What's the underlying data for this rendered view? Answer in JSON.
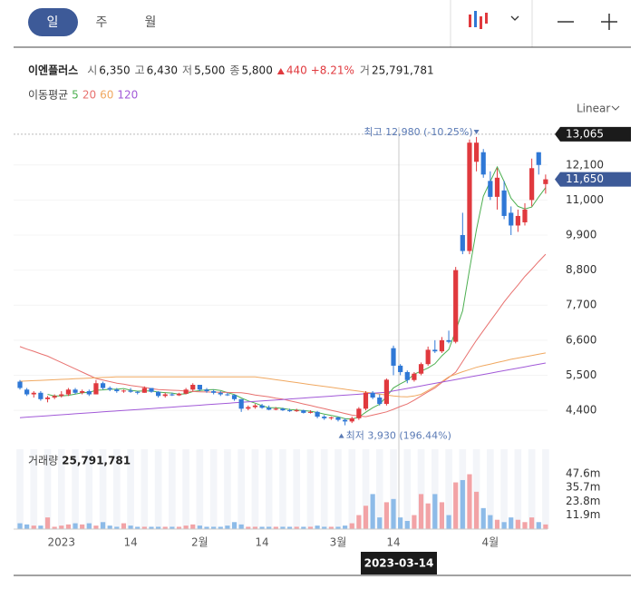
{
  "tabs": [
    "일",
    "주",
    "월"
  ],
  "info": {
    "name": "이엔플러스",
    "items": [
      {
        "label": "시",
        "value": "6,350"
      },
      {
        "label": "고",
        "value": "6,430"
      },
      {
        "label": "저",
        "value": "5,500"
      },
      {
        "label": "종",
        "value": "5,800"
      }
    ],
    "change": "440",
    "change_pct": "+8.21%",
    "volume_label": "거",
    "volume": "25,791,781"
  },
  "ma_legend_title": "이동평균",
  "scale_mode": "Linear",
  "chart_data": {
    "type": "candlestick",
    "categories": [
      null,
      null,
      null,
      null,
      null,
      null,
      "2023",
      null,
      null,
      null,
      null,
      null,
      null,
      null,
      null,
      null,
      "14",
      null,
      null,
      null,
      null,
      null,
      null,
      null,
      null,
      null,
      "2월",
      null,
      null,
      null,
      null,
      null,
      null,
      null,
      null,
      "14",
      null,
      null,
      null,
      null,
      null,
      null,
      null,
      null,
      null,
      null,
      "3월",
      null,
      null,
      null,
      null,
      null,
      null,
      null,
      "14",
      null,
      null,
      null,
      null,
      null,
      null,
      null,
      null,
      null,
      null,
      null,
      null,
      null,
      "4월",
      null,
      null,
      null,
      null,
      null,
      null,
      null,
      null
    ],
    "open": [
      5300,
      5050,
      4900,
      4950,
      4750,
      4800,
      4850,
      4900,
      5050,
      4950,
      5000,
      4900,
      5250,
      5100,
      5050,
      5000,
      5020,
      4980,
      4950,
      5100,
      4980,
      4850,
      4900,
      4870,
      4920,
      5050,
      5200,
      5050,
      5000,
      4950,
      4900,
      4880,
      4750,
      4450,
      4500,
      4550,
      4480,
      4420,
      4450,
      4400,
      4380,
      4400,
      4320,
      4350,
      4200,
      4150,
      4180,
      4100,
      4050,
      4150,
      4450,
      4950,
      4800,
      4600,
      6350,
      5800,
      5600,
      5350,
      5550,
      5850,
      6300,
      6250,
      6600,
      6550,
      9900,
      9400,
      12200,
      12500,
      11600,
      11100,
      11300,
      10600,
      10200,
      10300,
      11000,
      12500,
      11500
    ],
    "high": [
      5350,
      5100,
      5000,
      5000,
      4850,
      4900,
      5000,
      5100,
      5100,
      5050,
      5050,
      5350,
      5300,
      5150,
      5100,
      5050,
      5100,
      5000,
      5150,
      5100,
      5000,
      4950,
      4950,
      4950,
      5100,
      5250,
      5200,
      5100,
      5050,
      5000,
      4950,
      4900,
      4750,
      4550,
      4600,
      4600,
      4550,
      4500,
      4480,
      4450,
      4450,
      4420,
      4400,
      4380,
      4250,
      4200,
      4200,
      4150,
      4200,
      4500,
      5000,
      5000,
      4900,
      5400,
      6430,
      5850,
      5650,
      5600,
      5900,
      6400,
      6600,
      6700,
      6900,
      8900,
      10600,
      12900,
      12980,
      12600,
      11900,
      12000,
      11600,
      10800,
      10700,
      10900,
      12300,
      12500,
      11800
    ],
    "low": [
      5050,
      4850,
      4800,
      4700,
      4650,
      4750,
      4800,
      4850,
      4900,
      4900,
      4850,
      4900,
      5050,
      5000,
      4950,
      4950,
      4950,
      4900,
      4950,
      4950,
      4800,
      4800,
      4850,
      4850,
      4900,
      5000,
      5000,
      4950,
      4900,
      4850,
      4850,
      4700,
      4350,
      4400,
      4450,
      4450,
      4400,
      4400,
      4380,
      4350,
      4350,
      4300,
      4300,
      4150,
      4100,
      4100,
      4050,
      3930,
      4000,
      4100,
      4400,
      4750,
      4550,
      4550,
      5500,
      5500,
      5250,
      5300,
      5500,
      5800,
      6200,
      6200,
      6500,
      6500,
      9300,
      9300,
      11900,
      11700,
      11000,
      10700,
      10400,
      9900,
      10000,
      10200,
      10800,
      11800,
      11200
    ],
    "close": [
      5100,
      4900,
      4950,
      4750,
      4800,
      4850,
      4900,
      5050,
      4950,
      5000,
      4900,
      5250,
      5100,
      5050,
      5000,
      5020,
      4980,
      4950,
      5100,
      4980,
      4850,
      4900,
      4870,
      4920,
      5050,
      5200,
      5050,
      5000,
      4950,
      4900,
      4880,
      4750,
      4450,
      4500,
      4550,
      4480,
      4420,
      4450,
      4400,
      4380,
      4400,
      4320,
      4350,
      4200,
      4150,
      4180,
      4100,
      4050,
      4150,
      4450,
      4950,
      4800,
      4600,
      5360,
      5800,
      5600,
      5350,
      5550,
      5850,
      6300,
      6250,
      6600,
      6550,
      8800,
      9400,
      12800,
      12800,
      11800,
      11100,
      11700,
      10500,
      10200,
      10500,
      10700,
      12000,
      12100,
      11650
    ],
    "up_color": "#e0393e",
    "down_color": "#2f78d6",
    "ylim": [
      3320,
      13290
    ],
    "yticks": [
      {
        "value": 4400,
        "label": "4,400"
      },
      {
        "value": 5500,
        "label": "5,500"
      },
      {
        "value": 6600,
        "label": "6,600"
      },
      {
        "value": 7700,
        "label": "7,700"
      },
      {
        "value": 8800,
        "label": "8,800"
      },
      {
        "value": 9900,
        "label": "9,900"
      },
      {
        "value": 11000,
        "label": "11,000"
      },
      {
        "value": 12100,
        "label": "12,100"
      }
    ],
    "series": [
      {
        "name": "5",
        "color": "#4caf50",
        "values": [
          null,
          null,
          null,
          null,
          4900,
          4850,
          4850,
          4870,
          4910,
          4950,
          4960,
          5030,
          5040,
          5060,
          5060,
          5084,
          5030,
          5000,
          5010,
          5006,
          4972,
          4956,
          4940,
          4904,
          4918,
          4988,
          5018,
          5044,
          5050,
          5020,
          4956,
          4896,
          4786,
          4696,
          4626,
          4546,
          4480,
          4480,
          4460,
          4426,
          4410,
          4390,
          4370,
          4330,
          4284,
          4240,
          4196,
          4136,
          4126,
          4186,
          4340,
          4480,
          4590,
          4832,
          5102,
          5232,
          5342,
          5532,
          5630,
          5730,
          5860,
          6110,
          6310,
          6900,
          7520,
          8830,
          10070,
          11120,
          11580,
          12040,
          11580,
          11060,
          10800,
          10720,
          10780,
          11100,
          11390
        ]
      },
      {
        "name": "20",
        "color": "#e8716f",
        "values": [
          6400,
          6320,
          6250,
          6170,
          6100,
          6000,
          5900,
          5800,
          5700,
          5600,
          5500,
          5400,
          5350,
          5300,
          5250,
          5220,
          5180,
          5150,
          5120,
          5080,
          5050,
          5040,
          5030,
          5020,
          5000,
          4990,
          4980,
          4975,
          4970,
          4965,
          4960,
          4955,
          4950,
          4920,
          4880,
          4850,
          4820,
          4780,
          4750,
          4700,
          4650,
          4600,
          4550,
          4500,
          4450,
          4400,
          4350,
          4300,
          4250,
          4220,
          4200,
          4250,
          4300,
          4350,
          4430,
          4520,
          4600,
          4720,
          4850,
          4980,
          5100,
          5270,
          5430,
          5600,
          5930,
          6270,
          6600,
          6900,
          7200,
          7500,
          7800,
          8070,
          8330,
          8600,
          8830,
          9070,
          9300
        ]
      },
      {
        "name": "60",
        "color": "#f0a860",
        "values": [
          5310,
          5320,
          5330,
          5340,
          5350,
          5360,
          5370,
          5380,
          5390,
          5400,
          5410,
          5420,
          5430,
          5440,
          5450,
          5450,
          5450,
          5450,
          5450,
          5450,
          5450,
          5450,
          5450,
          5450,
          5450,
          5450,
          5450,
          5450,
          5450,
          5450,
          5450,
          5450,
          5450,
          5450,
          5450,
          5420,
          5390,
          5360,
          5330,
          5300,
          5270,
          5240,
          5210,
          5180,
          5150,
          5120,
          5090,
          5060,
          5030,
          5000,
          4970,
          4940,
          4910,
          4880,
          4850,
          4830,
          4820,
          4850,
          4900,
          5020,
          5150,
          5300,
          5450,
          5530,
          5610,
          5680,
          5750,
          5800,
          5850,
          5900,
          5950,
          6000,
          6040,
          6080,
          6120,
          6160,
          6200
        ]
      },
      {
        "name": "120",
        "color": "#a25ad8",
        "values": [
          4170,
          4185,
          4200,
          4215,
          4230,
          4245,
          4260,
          4275,
          4290,
          4305,
          4320,
          4335,
          4350,
          4365,
          4380,
          4395,
          4410,
          4425,
          4440,
          4455,
          4470,
          4485,
          4500,
          4515,
          4530,
          4545,
          4560,
          4575,
          4590,
          4605,
          4620,
          4635,
          4650,
          4665,
          4680,
          4695,
          4710,
          4725,
          4740,
          4755,
          4770,
          4785,
          4800,
          4815,
          4830,
          4845,
          4860,
          4875,
          4890,
          4905,
          4920,
          4935,
          4950,
          4965,
          5005,
          5045,
          5085,
          5125,
          5165,
          5205,
          5245,
          5285,
          5325,
          5365,
          5405,
          5445,
          5485,
          5525,
          5565,
          5605,
          5645,
          5685,
          5725,
          5765,
          5805,
          5845,
          5885
        ]
      }
    ],
    "annotations": [
      {
        "kind": "high",
        "value": 12980,
        "text": "최고 12,980 (-10.25%)"
      },
      {
        "kind": "low",
        "value": 3930,
        "text": "최저 3,930 (196.44%)"
      }
    ],
    "last_price": {
      "value": 11650,
      "label": "11,650"
    },
    "crosshair": {
      "date": "2023-03-14",
      "value": 13065,
      "label": "13,065"
    },
    "volume": {
      "title": "거래량",
      "title_value": "25,791,781",
      "values": [
        5000000,
        4000000,
        3000000,
        3000000,
        10000000,
        2000000,
        3000000,
        4000000,
        5000000,
        4000000,
        5000000,
        3000000,
        6000000,
        3000000,
        2000000,
        5000000,
        3000000,
        2000000,
        2000000,
        2000000,
        2000000,
        2000000,
        2000000,
        2000000,
        3000000,
        4000000,
        3000000,
        2000000,
        2000000,
        2000000,
        3000000,
        6000000,
        4000000,
        2000000,
        2000000,
        2000000,
        2000000,
        2000000,
        2000000,
        2000000,
        2000000,
        2000000,
        2000000,
        3000000,
        2000000,
        2000000,
        2000000,
        3000000,
        5000000,
        12000000,
        20000000,
        30000000,
        10000000,
        23000000,
        25791781,
        10000000,
        7000000,
        12000000,
        30000000,
        22000000,
        30000000,
        23000000,
        12000000,
        40000000,
        42000000,
        47000000,
        32000000,
        18000000,
        12000000,
        8000000,
        6000000,
        10000000,
        8000000,
        6000000,
        10000000,
        6000000,
        4000000
      ],
      "up_color": "#f2a3a6",
      "down_color": "#8dbbe8",
      "ylim": [
        0,
        68400000
      ],
      "yticks": [
        {
          "value": 11900000,
          "label": "11.9m"
        },
        {
          "value": 23800000,
          "label": "23.8m"
        },
        {
          "value": 35700000,
          "label": "35.7m"
        },
        {
          "value": 47600000,
          "label": "47.6m"
        }
      ]
    }
  }
}
